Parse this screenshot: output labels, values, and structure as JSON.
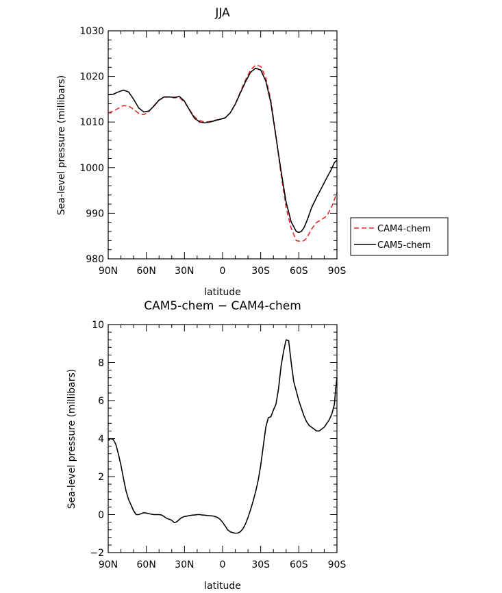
{
  "chart_data": [
    {
      "type": "line",
      "title": "JJA",
      "xlabel": "latitude",
      "ylabel": "Sea-level pressure (millibars)",
      "xlim": [
        90,
        -90
      ],
      "ylim": [
        980,
        1030
      ],
      "xticks": [
        90,
        60,
        30,
        0,
        -30,
        -60,
        -90
      ],
      "xtick_labels": [
        "90N",
        "60N",
        "30N",
        "0",
        "30S",
        "60S",
        "90S"
      ],
      "yticks": [
        980,
        990,
        1000,
        1010,
        1020,
        1030
      ],
      "ytick_labels": [
        "980",
        "990",
        "1000",
        "1010",
        "1020",
        "1030"
      ],
      "legend_position": "right",
      "series": [
        {
          "name": "CAM4-chem",
          "color": "#e8262a",
          "dash": "dashed",
          "x": [
            90,
            86,
            82,
            78,
            74,
            70,
            66,
            62,
            58,
            54,
            50,
            46,
            42,
            38,
            34,
            30,
            26,
            22,
            18,
            14,
            10,
            6,
            2,
            -2,
            -6,
            -10,
            -14,
            -18,
            -22,
            -26,
            -30,
            -34,
            -38,
            -42,
            -46,
            -50,
            -54,
            -58,
            -62,
            -64,
            -66,
            -68,
            -70,
            -74,
            -78,
            -82,
            -86,
            -88,
            -90
          ],
          "y": [
            1012.0,
            1012.4,
            1013.0,
            1013.6,
            1013.5,
            1012.8,
            1011.9,
            1011.6,
            1012.3,
            1013.6,
            1014.8,
            1015.4,
            1015.5,
            1015.3,
            1015.4,
            1014.4,
            1012.7,
            1011.1,
            1010.3,
            1010.0,
            1010.1,
            1010.4,
            1010.6,
            1010.9,
            1012.0,
            1014.0,
            1016.6,
            1019.2,
            1021.4,
            1022.5,
            1022.2,
            1019.7,
            1014.8,
            1007.0,
            998.5,
            991.2,
            986.7,
            984.0,
            983.8,
            984.0,
            984.5,
            985.5,
            986.5,
            988.0,
            988.6,
            989.4,
            991.5,
            993.0,
            994.5
          ]
        },
        {
          "name": "CAM5-chem",
          "color": "#000000",
          "dash": "solid",
          "x": [
            90,
            86,
            82,
            78,
            74,
            70,
            66,
            62,
            58,
            54,
            50,
            46,
            42,
            38,
            34,
            30,
            26,
            22,
            18,
            14,
            10,
            6,
            2,
            -2,
            -6,
            -10,
            -14,
            -18,
            -22,
            -26,
            -30,
            -34,
            -38,
            -42,
            -46,
            -50,
            -54,
            -58,
            -60,
            -62,
            -64,
            -66,
            -68,
            -70,
            -74,
            -78,
            -82,
            -85,
            -88,
            -90
          ],
          "y": [
            1016.0,
            1016.1,
            1016.6,
            1017.0,
            1016.6,
            1015.0,
            1013.1,
            1012.2,
            1012.4,
            1013.5,
            1014.8,
            1015.5,
            1015.5,
            1015.4,
            1015.6,
            1014.6,
            1012.6,
            1010.8,
            1010.0,
            1009.8,
            1010.0,
            1010.3,
            1010.6,
            1010.9,
            1012.0,
            1013.9,
            1016.4,
            1018.8,
            1020.9,
            1021.8,
            1021.4,
            1019.0,
            1014.2,
            1006.8,
            999.2,
            992.4,
            988.1,
            986.0,
            985.8,
            986.0,
            986.8,
            988.1,
            989.6,
            991.2,
            993.5,
            995.6,
            997.8,
            999.3,
            1001.1,
            1001.6
          ]
        }
      ]
    },
    {
      "type": "line",
      "title": "CAM5-chem − CAM4-chem",
      "xlabel": "latitude",
      "ylabel": "Sea-level pressure (millibars)",
      "xlim": [
        90,
        -90
      ],
      "ylim": [
        -2,
        10
      ],
      "xticks": [
        90,
        60,
        30,
        0,
        -30,
        -60,
        -90
      ],
      "xtick_labels": [
        "90N",
        "60N",
        "30N",
        "0",
        "30S",
        "60S",
        "90S"
      ],
      "yticks": [
        -2,
        0,
        2,
        4,
        6,
        8,
        10
      ],
      "ytick_labels": [
        "−2",
        "0",
        "2",
        "4",
        "6",
        "8",
        "10"
      ],
      "series": [
        {
          "name": "CAM5-chem − CAM4-chem",
          "color": "#000000",
          "dash": "solid",
          "x": [
            90,
            88,
            86,
            84,
            82,
            80,
            78,
            76,
            74,
            72,
            70,
            68,
            66,
            64,
            62,
            60,
            58,
            56,
            54,
            52,
            50,
            48,
            46,
            44,
            42,
            40,
            38,
            36,
            34,
            32,
            30,
            28,
            26,
            24,
            22,
            20,
            18,
            16,
            14,
            12,
            10,
            8,
            6,
            4,
            2,
            0,
            -2,
            -4,
            -6,
            -8,
            -10,
            -12,
            -14,
            -16,
            -18,
            -20,
            -22,
            -24,
            -26,
            -28,
            -30,
            -32,
            -34,
            -36,
            -38,
            -40,
            -42,
            -44,
            -46,
            -48,
            -50,
            -52,
            -54,
            -56,
            -58,
            -60,
            -62,
            -64,
            -66,
            -68,
            -70,
            -72,
            -74,
            -76,
            -78,
            -80,
            -82,
            -84,
            -86,
            -88,
            -89,
            -90
          ],
          "y": [
            3.9,
            4.0,
            3.95,
            3.7,
            3.2,
            2.6,
            1.9,
            1.25,
            0.8,
            0.5,
            0.2,
            0.0,
            0.0,
            0.05,
            0.1,
            0.08,
            0.05,
            0.02,
            0.0,
            0.0,
            0.0,
            -0.02,
            -0.1,
            -0.2,
            -0.25,
            -0.3,
            -0.42,
            -0.38,
            -0.25,
            -0.15,
            -0.1,
            -0.08,
            -0.05,
            -0.03,
            -0.02,
            0.0,
            0.0,
            -0.02,
            -0.03,
            -0.05,
            -0.06,
            -0.07,
            -0.1,
            -0.15,
            -0.25,
            -0.4,
            -0.6,
            -0.8,
            -0.9,
            -0.95,
            -0.98,
            -0.97,
            -0.9,
            -0.75,
            -0.5,
            -0.15,
            0.25,
            0.7,
            1.2,
            1.8,
            2.6,
            3.6,
            4.6,
            5.1,
            5.15,
            5.5,
            5.8,
            6.6,
            7.8,
            8.6,
            9.2,
            9.15,
            8.0,
            7.0,
            6.5,
            6.0,
            5.6,
            5.2,
            4.9,
            4.7,
            4.6,
            4.5,
            4.4,
            4.4,
            4.5,
            4.6,
            4.8,
            5.0,
            5.3,
            5.8,
            6.6,
            7.2
          ]
        }
      ]
    }
  ],
  "legend": {
    "items": [
      {
        "label": "CAM4-chem",
        "color": "#e8262a",
        "dash": "dashed"
      },
      {
        "label": "CAM5-chem",
        "color": "#000000",
        "dash": "solid"
      }
    ]
  }
}
